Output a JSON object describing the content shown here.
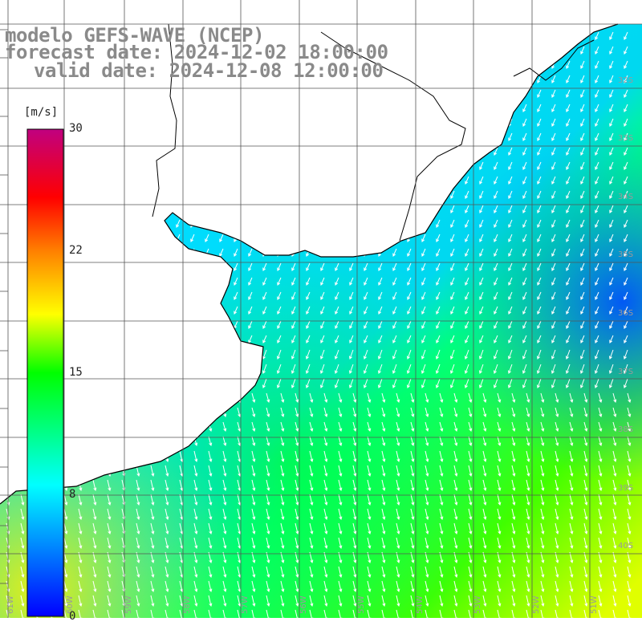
{
  "title": {
    "line1": "modelo GEFS-WAVE (NCEP)",
    "line2": "forecast date: 2024-12-02 18:00:00",
    "line3": "valid date: 2024-12-08 12:00:00"
  },
  "legend": {
    "unit": "[m/s]",
    "min": 0,
    "max": 30,
    "ticks": [
      "30",
      "22",
      "15",
      "8",
      "0"
    ],
    "tick_values": [
      30,
      22,
      15,
      8,
      0
    ],
    "colors": [
      "#0000ff",
      "#00ffff",
      "#00ff00",
      "#ffff00",
      "#ff8000",
      "#ff0000",
      "#c00080"
    ]
  },
  "map": {
    "lat_labels": [
      "32S",
      "33S",
      "34S",
      "35S",
      "36S",
      "37S",
      "38S",
      "39S",
      "40S"
    ],
    "lon_labels": [
      "61W",
      "60W",
      "59W",
      "58W",
      "57W",
      "56W",
      "55W",
      "54W",
      "53W",
      "52W",
      "51W"
    ],
    "land_color": "#ffffff",
    "grid_color": "#555555",
    "arrow_color": "#ffffff",
    "wind_direction": "from NE toward SW"
  }
}
